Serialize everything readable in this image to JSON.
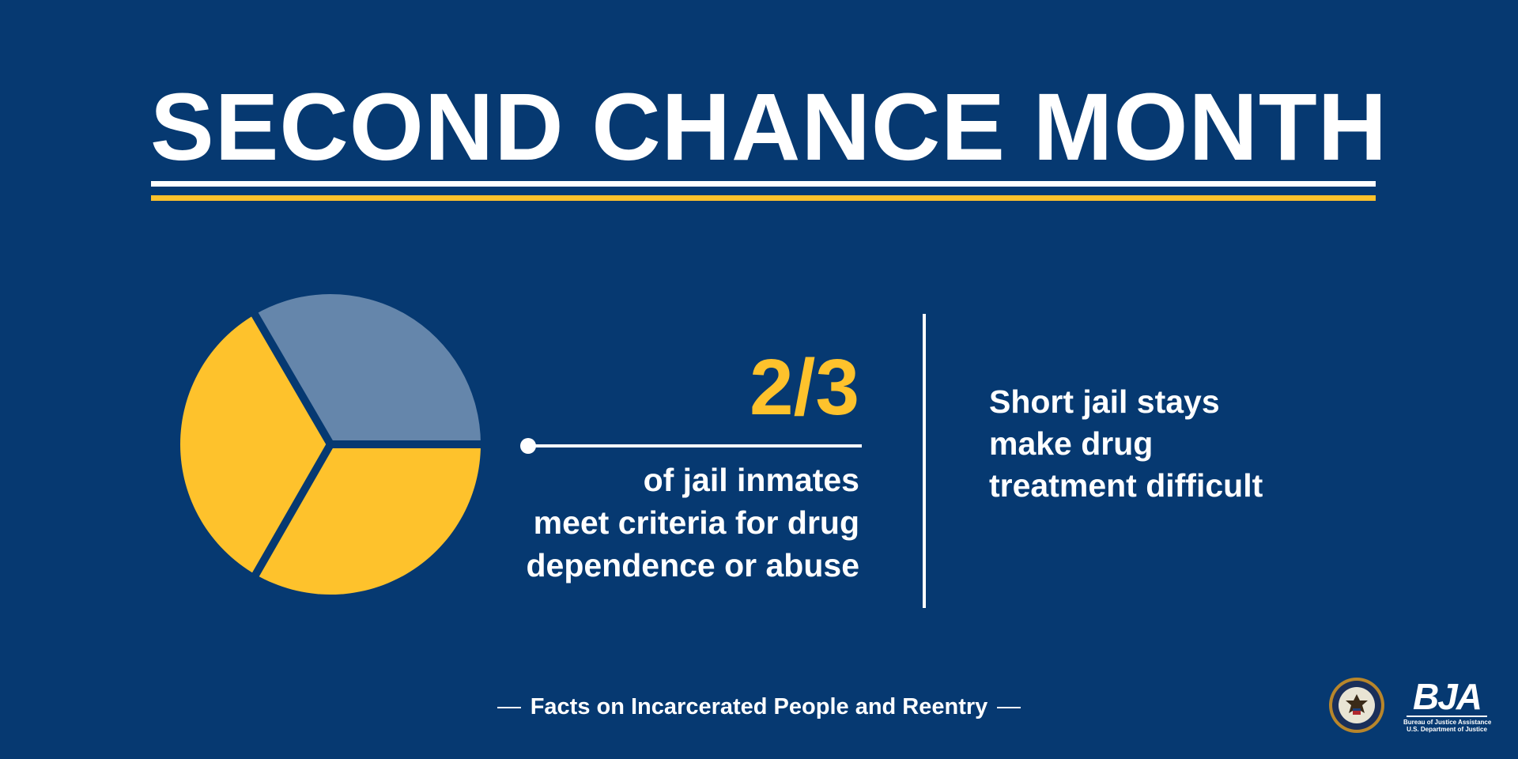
{
  "header": {
    "title": "SECOND CHANCE MONTH"
  },
  "colors": {
    "background": "#063971",
    "accent_gold": "#fec22c",
    "muted_blue": "#6586ab",
    "text": "#ffffff"
  },
  "stat": {
    "value": "2/3",
    "lines": [
      "of jail inmates",
      "meet criteria for drug",
      "dependence or abuse"
    ]
  },
  "pie": {
    "slices": [
      {
        "fraction": 0.333,
        "color": "#fec22c"
      },
      {
        "fraction": 0.333,
        "color": "#fec22c"
      },
      {
        "fraction": 0.334,
        "color": "#6586ab"
      }
    ]
  },
  "side_note": {
    "lines": [
      "Short jail stays",
      "make drug",
      "treatment difficult"
    ]
  },
  "footer": {
    "text": "Facts on Incarcerated People and Reentry"
  },
  "logos": {
    "seal_icon": "doj-seal-icon",
    "bja_letters": "BJA",
    "bja_line1": "Bureau of Justice Assistance",
    "bja_line2": "U.S. Department of Justice"
  }
}
